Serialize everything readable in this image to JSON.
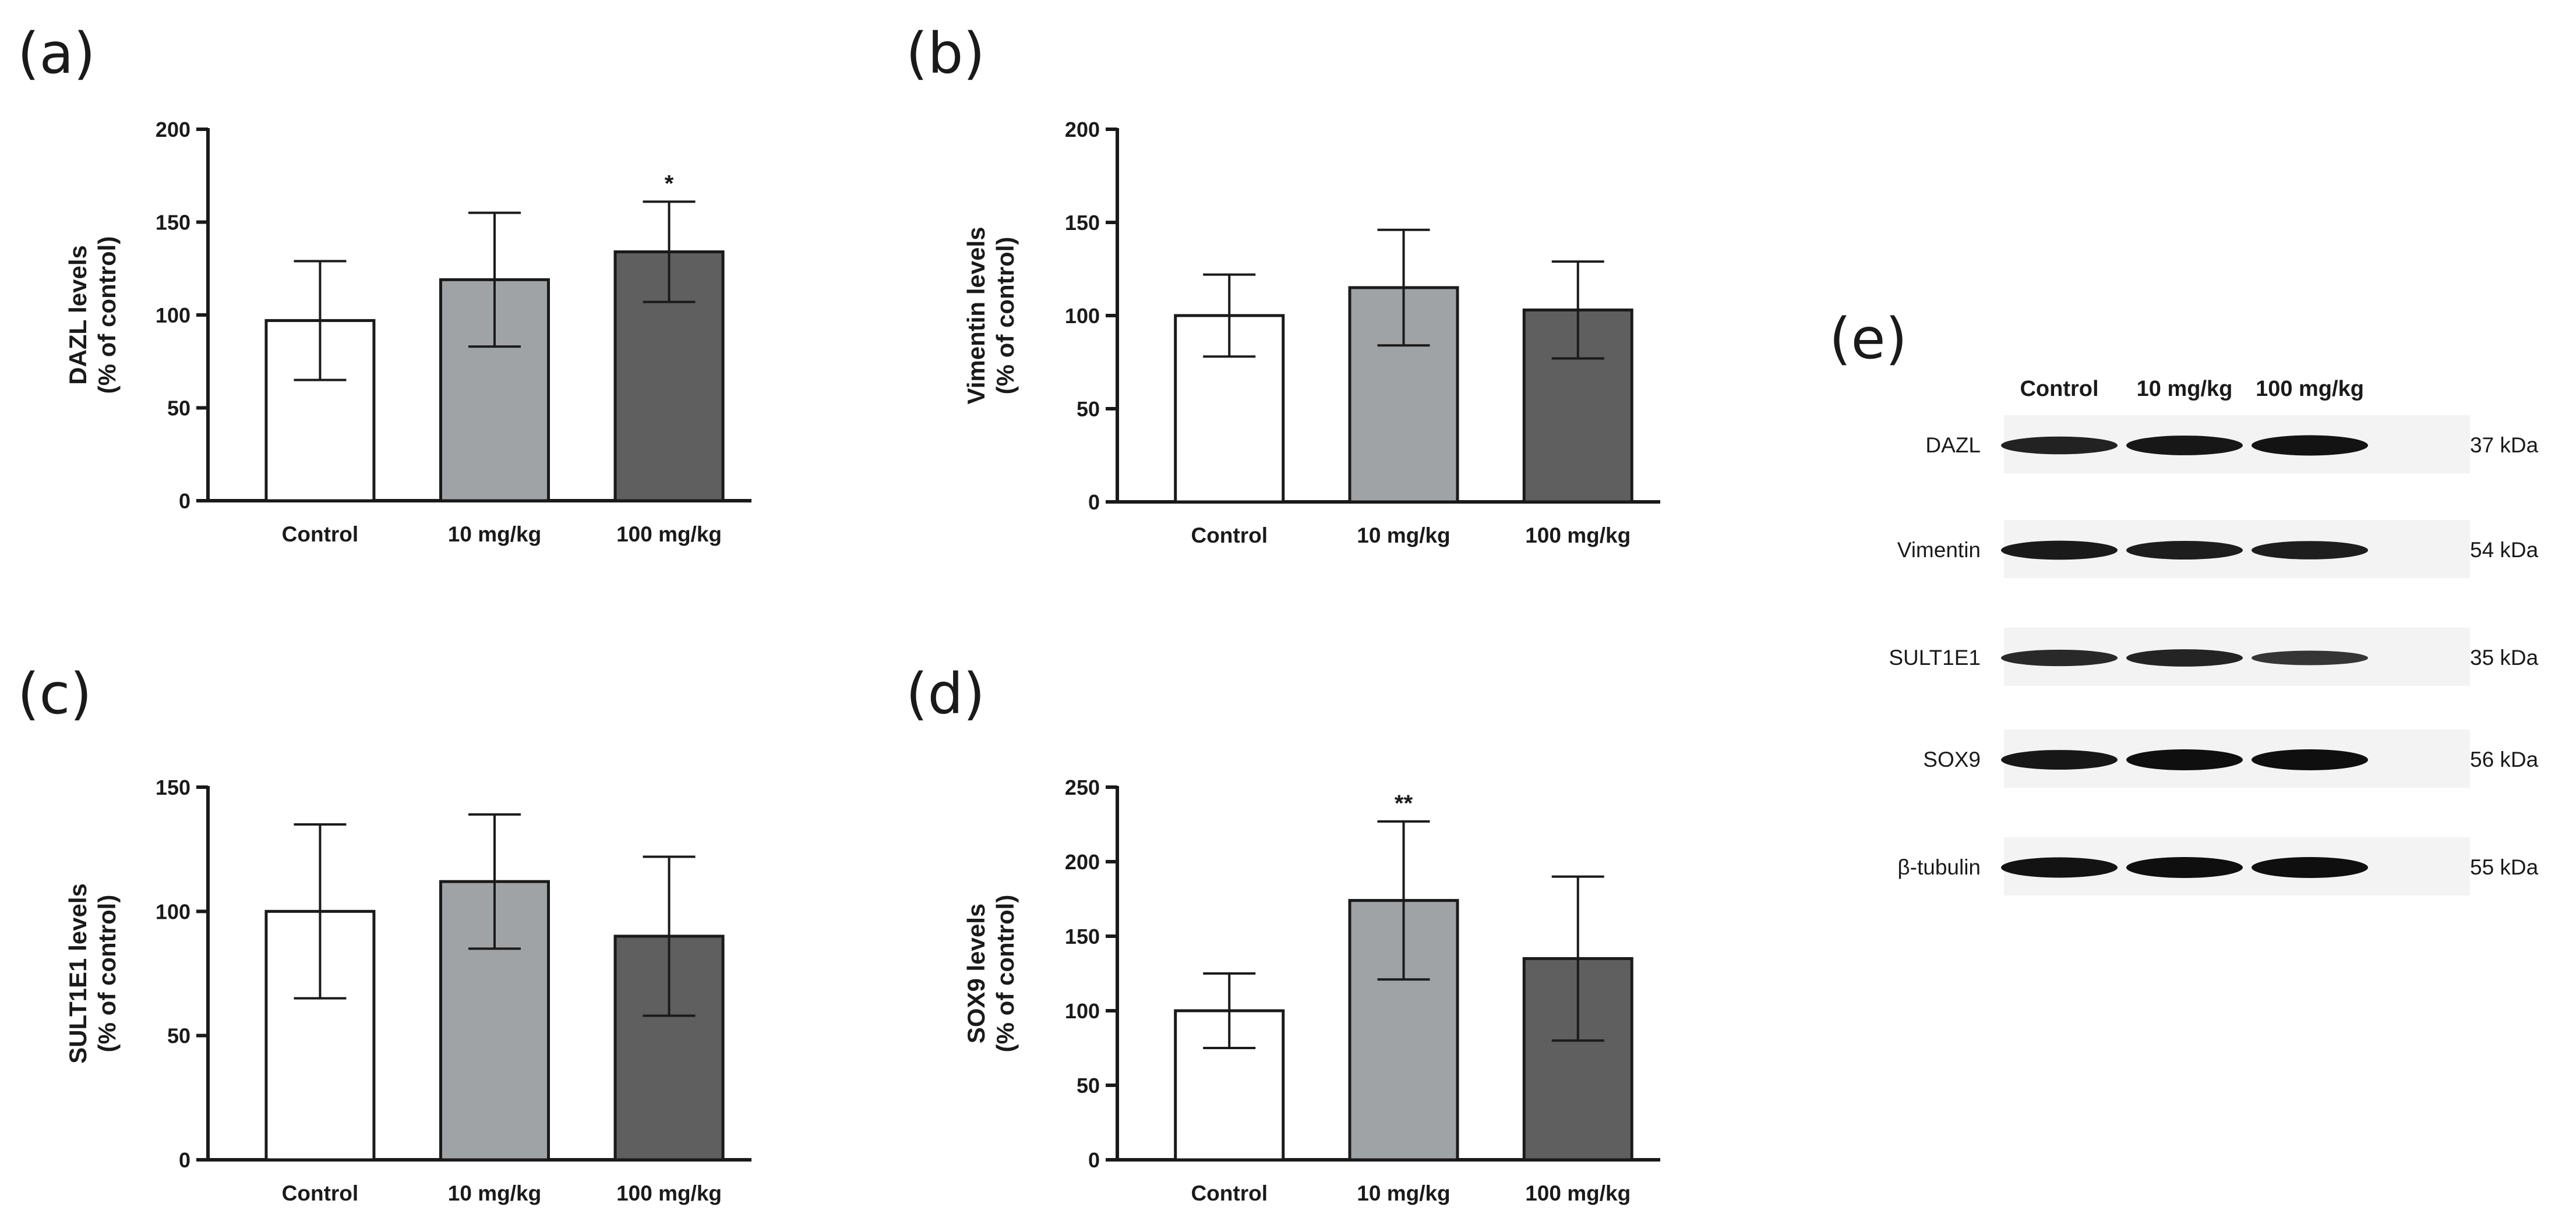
{
  "panels": [
    {
      "letter": "(a)"
    },
    {
      "letter": "(b)"
    },
    {
      "letter": "(c)"
    },
    {
      "letter": "(d)"
    },
    {
      "letter": "(e)"
    }
  ],
  "colors": {
    "control": "#ffffff",
    "dose10": "#a0a3a6",
    "dose100": "#5f5f5f",
    "stroke": "#1a1a1a"
  },
  "chart_data": [
    {
      "panel": "(a)",
      "type": "bar",
      "categories": [
        "Control",
        "10 mg/kg",
        "100 mg/kg"
      ],
      "values": [
        97,
        119,
        134
      ],
      "errors": [
        32,
        36,
        27
      ],
      "significance": [
        "",
        "",
        "*"
      ],
      "ylabel_line1": "DAZL levels",
      "ylabel_line2": "(% of control)",
      "ylim": [
        0,
        200
      ],
      "yticks": [
        0,
        50,
        100,
        150,
        200
      ]
    },
    {
      "panel": "(b)",
      "type": "bar",
      "categories": [
        "Control",
        "10 mg/kg",
        "100 mg/kg"
      ],
      "values": [
        100,
        115,
        103
      ],
      "errors": [
        22,
        31,
        26
      ],
      "significance": [
        "",
        "",
        ""
      ],
      "ylabel_line1": "Vimentin levels",
      "ylabel_line2": "(% of control)",
      "ylim": [
        0,
        200
      ],
      "yticks": [
        0,
        50,
        100,
        150,
        200
      ]
    },
    {
      "panel": "(c)",
      "type": "bar",
      "categories": [
        "Control",
        "10 mg/kg",
        "100 mg/kg"
      ],
      "values": [
        100,
        112,
        90
      ],
      "errors": [
        35,
        27,
        32
      ],
      "significance": [
        "",
        "",
        ""
      ],
      "ylabel_line1": "SULT1E1 levels",
      "ylabel_line2": "(% of control)",
      "ylim": [
        0,
        150
      ],
      "yticks": [
        0,
        50,
        100,
        150
      ]
    },
    {
      "panel": "(d)",
      "type": "bar",
      "categories": [
        "Control",
        "10 mg/kg",
        "100 mg/kg"
      ],
      "values": [
        100,
        174,
        135
      ],
      "errors": [
        25,
        53,
        55
      ],
      "significance": [
        "",
        "**",
        ""
      ],
      "ylabel_line1": "SOX9 levels",
      "ylabel_line2": "(% of control)",
      "ylim": [
        0,
        250
      ],
      "yticks": [
        0,
        50,
        100,
        150,
        200,
        250
      ]
    }
  ],
  "western_blot": {
    "lanes": [
      "Control",
      "10 mg/kg",
      "100 mg/kg"
    ],
    "rows": [
      {
        "protein": "DAZL",
        "kda": "37 kDa",
        "intensity": [
          0.75,
          0.9,
          0.95
        ]
      },
      {
        "protein": "Vimentin",
        "kda": "54 kDa",
        "intensity": [
          0.85,
          0.82,
          0.8
        ]
      },
      {
        "protein": "SULT1E1",
        "kda": "35 kDa",
        "intensity": [
          0.65,
          0.72,
          0.5
        ]
      },
      {
        "protein": "SOX9",
        "kda": "56 kDa",
        "intensity": [
          0.9,
          1.0,
          1.0
        ]
      },
      {
        "protein": "β-tubulin",
        "kda": "55 kDa",
        "intensity": [
          0.95,
          1.0,
          1.0
        ]
      }
    ]
  }
}
